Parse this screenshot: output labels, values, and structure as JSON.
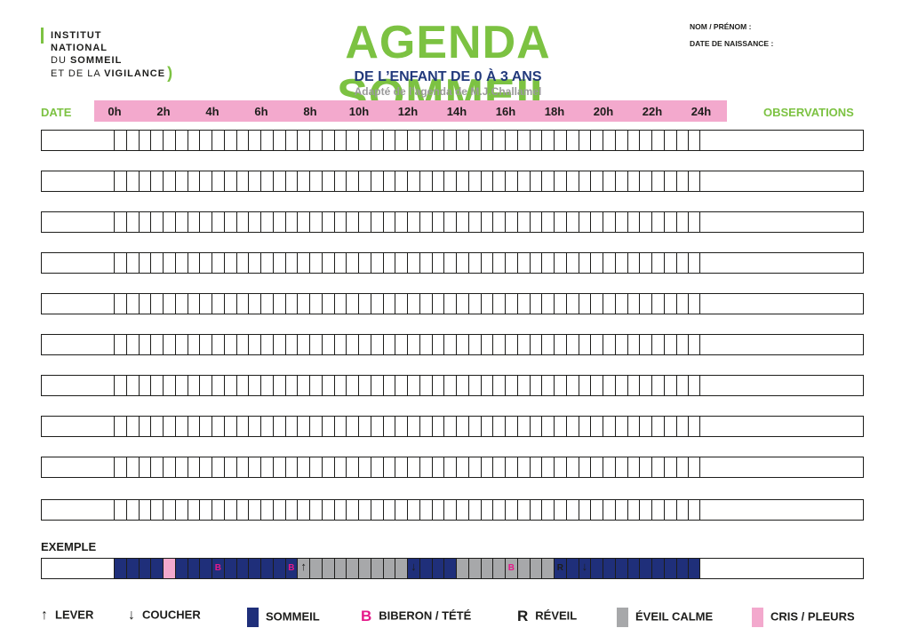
{
  "logo": {
    "lines": [
      "INSTITUT",
      "NATIONAL",
      "DU SOMMEIL",
      "ET DE LA VIGILANCE"
    ]
  },
  "title": "AGENDA SOMMEIL",
  "subtitle": "DE L’ENFANT DE 0 À 3 ANS",
  "adapted": "Adapté de l’agenda de M.J.Challamel",
  "meta": {
    "name_label": "NOM / PRÉNOM :",
    "birth_label": "DATE DE NAISSANCE :"
  },
  "header": {
    "date": "DATE",
    "observations": "OBSERVATIONS",
    "hours": [
      "0h",
      "2h",
      "4h",
      "6h",
      "8h",
      "10h",
      "12h",
      "14h",
      "16h",
      "18h",
      "20h",
      "22h",
      "24h"
    ]
  },
  "grid": {
    "day_rows": 10,
    "slots_per_row": 48
  },
  "example": {
    "label": "EXEMPLE",
    "states": [
      "sommeil",
      "sommeil",
      "sommeil",
      "sommeil",
      "cris",
      "sommeil",
      "sommeil",
      "sommeil",
      "sommeil",
      "sommeil",
      "sommeil",
      "sommeil",
      "sommeil",
      "sommeil",
      "sommeil",
      "eveil",
      "eveil",
      "eveil",
      "eveil",
      "eveil",
      "eveil",
      "eveil",
      "eveil",
      "eveil",
      "sommeil",
      "sommeil",
      "sommeil",
      "sommeil",
      "eveil",
      "eveil",
      "eveil",
      "eveil",
      "eveil",
      "eveil",
      "eveil",
      "eveil",
      "sommeil",
      "sommeil",
      "sommeil",
      "sommeil",
      "sommeil",
      "sommeil",
      "sommeil",
      "sommeil",
      "sommeil",
      "sommeil",
      "sommeil",
      "sommeil"
    ],
    "marks": [
      {
        "slot": 8,
        "text": "B",
        "kind": "b"
      },
      {
        "slot": 14,
        "text": "B",
        "kind": "b"
      },
      {
        "slot": 15,
        "text": "↑",
        "kind": "arrow"
      },
      {
        "slot": 24,
        "text": "↓",
        "kind": "arrow"
      },
      {
        "slot": 32,
        "text": "B",
        "kind": "b"
      },
      {
        "slot": 36,
        "text": "R",
        "kind": "r"
      },
      {
        "slot": 38,
        "text": "↓",
        "kind": "arrow"
      }
    ]
  },
  "colors": {
    "green": "#7cc242",
    "navy": "#1f2f7a",
    "pink": "#f3a9cd",
    "magenta": "#e5198a",
    "gray": "#a7a8aa",
    "dark_blue_text": "#233a7c"
  },
  "legend": [
    {
      "symbol": "↑",
      "type": "glyph",
      "label": "LEVER"
    },
    {
      "symbol": "↓",
      "type": "glyph",
      "label": "COUCHER"
    },
    {
      "symbol": "",
      "type": "swatch-navy",
      "label": "SOMMEIL"
    },
    {
      "symbol": "B",
      "type": "bigB",
      "label": "BIBERON / TÉTÉ"
    },
    {
      "symbol": "R",
      "type": "bigR",
      "label": "RÉVEIL"
    },
    {
      "symbol": "",
      "type": "swatch-gray",
      "label": "ÉVEIL CALME"
    },
    {
      "symbol": "",
      "type": "swatch-pink",
      "label": "CRIS / PLEURS"
    }
  ]
}
